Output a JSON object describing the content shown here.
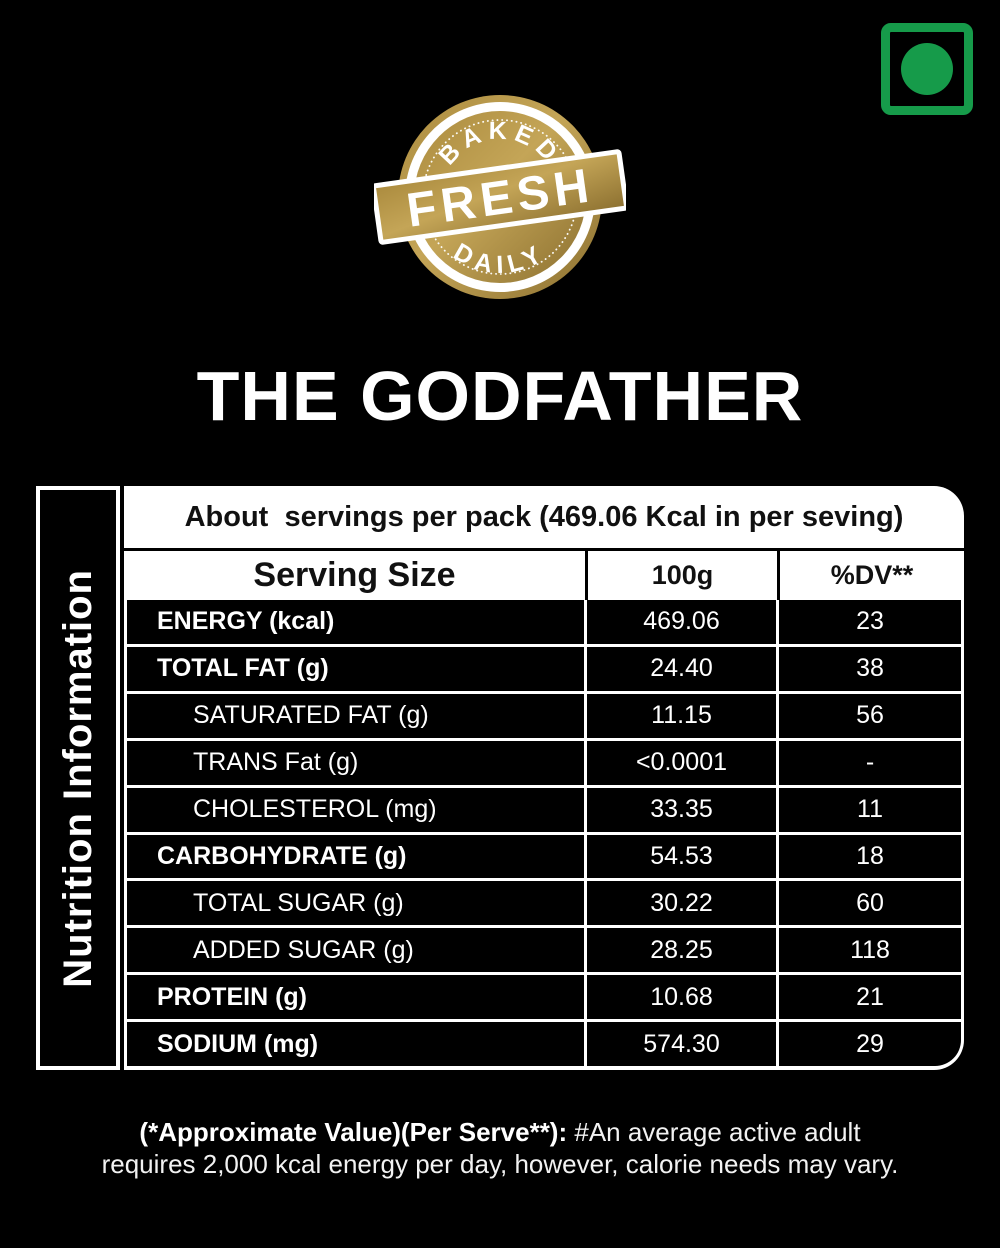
{
  "colors": {
    "green": "#169b4a",
    "gold1": "#ab8b3e",
    "gold2": "#c4a557",
    "gold3": "#8c7030"
  },
  "veg_mark": {
    "meaning": "vegetarian-mark"
  },
  "badge": {
    "top_text": "BAKED",
    "center_text": "FRESH",
    "bottom_text": "DAILY"
  },
  "title": "THE GODFATHER",
  "nutrition": {
    "sidebar_label": "Nutrition Information",
    "header_line": "About  servings per pack (469.06 Kcal in per seving)",
    "columns": {
      "label": "Serving Size",
      "amount": "100g",
      "dv": "%DV**"
    },
    "rows": [
      {
        "label": "ENERGY (kcal)",
        "amount": "469.06",
        "dv": "23",
        "bold": true,
        "indent": false
      },
      {
        "label": "TOTAL FAT (g)",
        "amount": "24.40",
        "dv": "38",
        "bold": true,
        "indent": false
      },
      {
        "label": "SATURATED FAT (g)",
        "amount": "11.15",
        "dv": "56",
        "bold": false,
        "indent": true
      },
      {
        "label": "TRANS Fat (g)",
        "amount": "<0.0001",
        "dv": "-",
        "bold": false,
        "indent": true
      },
      {
        "label": "CHOLESTEROL (mg)",
        "amount": "33.35",
        "dv": "11",
        "bold": false,
        "indent": true
      },
      {
        "label": "CARBOHYDRATE (g)",
        "amount": "54.53",
        "dv": "18",
        "bold": true,
        "indent": false
      },
      {
        "label": "TOTAL SUGAR (g)",
        "amount": "30.22",
        "dv": "60",
        "bold": false,
        "indent": true
      },
      {
        "label": "ADDED SUGAR (g)",
        "amount": "28.25",
        "dv": "118",
        "bold": false,
        "indent": true
      },
      {
        "label": "PROTEIN (g)",
        "amount": "10.68",
        "dv": "21",
        "bold": true,
        "indent": false
      },
      {
        "label": "SODIUM (mg)",
        "amount": "574.30",
        "dv": "29",
        "bold": true,
        "indent": false
      }
    ]
  },
  "footer": {
    "line1_bold": "(*Approximate Value)(Per Serve**):",
    "line1_rest": " #An average active adult",
    "line2": "requires 2,000 kcal energy per day, however, calorie needs may vary."
  }
}
